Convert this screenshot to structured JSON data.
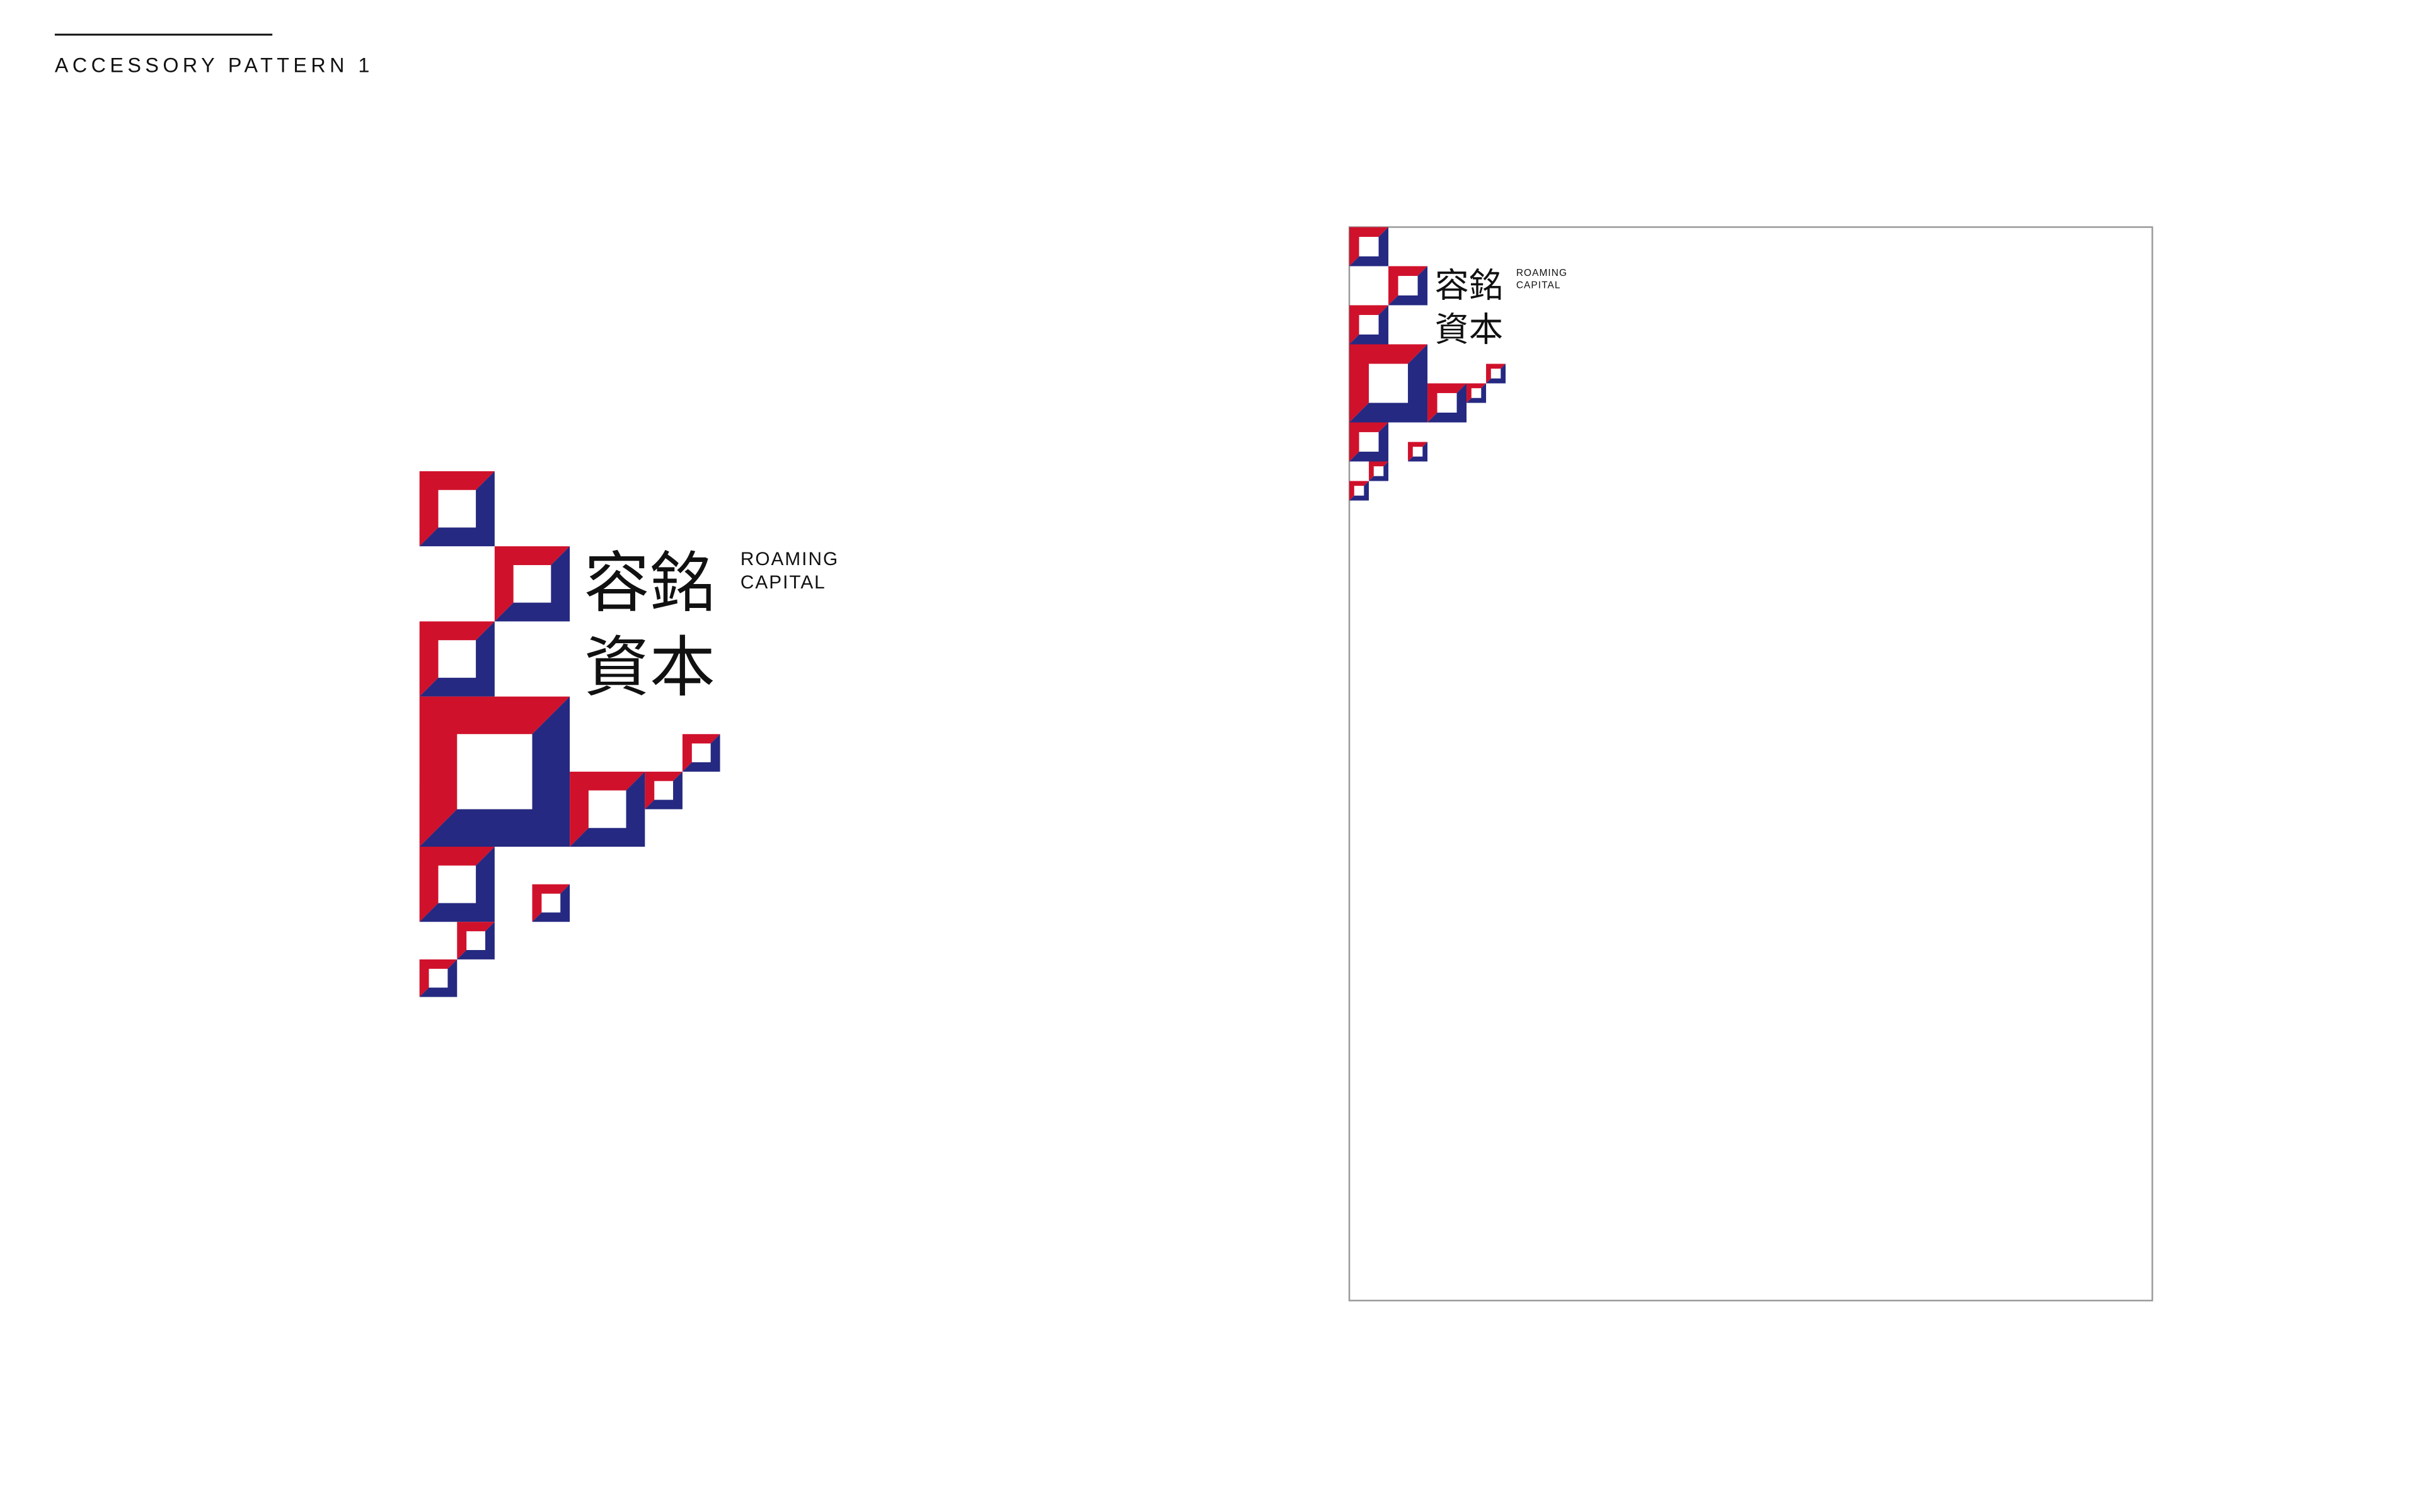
{
  "header": {
    "title": "ACCESSORY PATTERN 1"
  },
  "logo": {
    "chinese_line_1": "容銘",
    "chinese_line_2": "資本",
    "english_line_1": "ROAMING",
    "english_line_2": "CAPITAL"
  }
}
